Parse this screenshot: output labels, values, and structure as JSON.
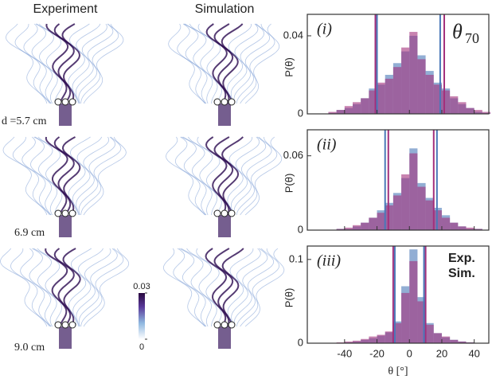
{
  "panels": {
    "columns": [
      "Experiment",
      "Simulation"
    ],
    "rows": [
      "d =5.7 cm",
      "6.9 cm",
      "9.0 cm"
    ],
    "colorbar_ticks": [
      0,
      0.03
    ]
  },
  "chart_data": [
    {
      "type": "histogram",
      "label": "(i)",
      "annotation": {
        "symbol": "θ",
        "subscript": "70"
      },
      "ylabel": "P(θ)",
      "bins": [
        -50,
        -45,
        -40,
        -35,
        -30,
        -25,
        -20,
        -15,
        -10,
        -5,
        0,
        5,
        10,
        15,
        20,
        25,
        30,
        35,
        40,
        45,
        50
      ],
      "xlim": [
        -63,
        49
      ],
      "ylim": [
        0,
        0.051
      ],
      "yticks": [
        0,
        0.04
      ],
      "series": [
        {
          "name": "Exp.",
          "color": "#a3307c",
          "values": [
            0.001,
            0.002,
            0.004,
            0.006,
            0.008,
            0.012,
            0.016,
            0.018,
            0.024,
            0.034,
            0.042,
            0.028,
            0.02,
            0.015,
            0.012,
            0.009,
            0.006,
            0.003,
            0.002,
            0.001
          ],
          "theta70": [
            -21,
            21.5
          ]
        },
        {
          "name": "Sim.",
          "color": "#4a78b8",
          "values": [
            0.0005,
            0.002,
            0.003,
            0.005,
            0.008,
            0.013,
            0.015,
            0.02,
            0.026,
            0.032,
            0.04,
            0.03,
            0.022,
            0.016,
            0.013,
            0.008,
            0.005,
            0.003,
            0.001,
            0.0005
          ],
          "theta70": [
            -20,
            19
          ]
        }
      ]
    },
    {
      "type": "histogram",
      "label": "(ii)",
      "ylabel": "P(θ)",
      "bins": [
        -50,
        -45,
        -40,
        -35,
        -30,
        -25,
        -20,
        -15,
        -10,
        -5,
        0,
        5,
        10,
        15,
        20,
        25,
        30,
        35,
        40,
        45,
        50
      ],
      "xlim": [
        -63,
        49
      ],
      "ylim": [
        0,
        0.081
      ],
      "yticks": [
        0,
        0.06
      ],
      "series": [
        {
          "name": "Exp.",
          "color": "#a3307c",
          "values": [
            0,
            0.001,
            0.002,
            0.004,
            0.006,
            0.01,
            0.014,
            0.02,
            0.028,
            0.045,
            0.062,
            0.035,
            0.024,
            0.016,
            0.01,
            0.006,
            0.003,
            0.002,
            0.001,
            0
          ],
          "theta70": [
            -13,
            15
          ]
        },
        {
          "name": "Sim.",
          "color": "#4a78b8",
          "values": [
            0,
            0.001,
            0.001,
            0.003,
            0.006,
            0.01,
            0.016,
            0.022,
            0.03,
            0.042,
            0.066,
            0.038,
            0.026,
            0.018,
            0.012,
            0.006,
            0.003,
            0.001,
            0.001,
            0
          ],
          "theta70": [
            -15,
            17
          ]
        }
      ]
    },
    {
      "type": "histogram",
      "label": "(iii)",
      "ylabel": "P(θ)",
      "xlabel": "θ [°]",
      "bins": [
        -50,
        -45,
        -40,
        -35,
        -30,
        -25,
        -20,
        -15,
        -10,
        -5,
        0,
        5,
        10,
        15,
        20,
        25,
        30,
        35,
        40,
        45,
        50
      ],
      "xlim": [
        -63,
        49
      ],
      "ylim": [
        0,
        0.116
      ],
      "yticks": [
        0,
        0.1
      ],
      "xticks": [
        -40,
        -20,
        0,
        20,
        40
      ],
      "series": [
        {
          "name": "Exp.",
          "color": "#a3307c",
          "values": [
            0,
            0.001,
            0.002,
            0.003,
            0.005,
            0.008,
            0.01,
            0.014,
            0.024,
            0.06,
            0.098,
            0.05,
            0.022,
            0.012,
            0.008,
            0.004,
            0.002,
            0.001,
            0,
            0
          ],
          "theta70": [
            -10,
            10
          ]
        },
        {
          "name": "Sim.",
          "color": "#4a78b8",
          "values": [
            0,
            0,
            0.001,
            0.002,
            0.004,
            0.006,
            0.009,
            0.013,
            0.026,
            0.068,
            0.112,
            0.055,
            0.024,
            0.012,
            0.007,
            0.004,
            0.002,
            0.001,
            0,
            0
          ],
          "theta70": [
            -9,
            9
          ]
        }
      ]
    }
  ]
}
